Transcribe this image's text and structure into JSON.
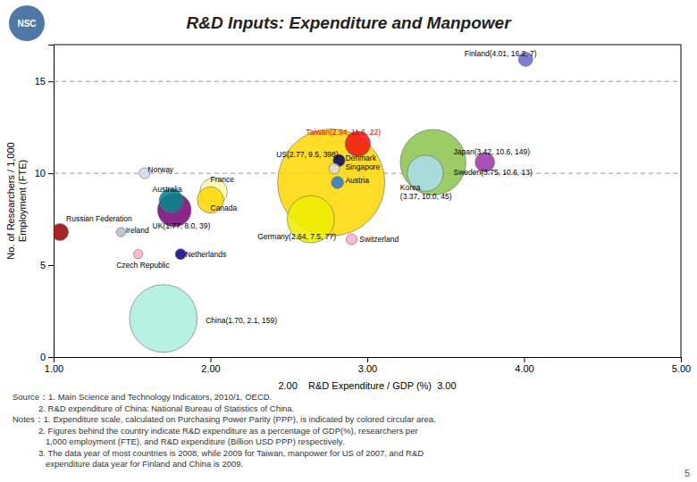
{
  "chart_data": {
    "type": "bubble",
    "title": "R&D Inputs: Expenditure and Manpower",
    "logo_text": "NSC",
    "page_number": "5",
    "xlabel": "2.00    R&D Expenditure / GDP (%)  3.00",
    "ylabel": "No. of Researchers / 1,000\nEmployment (FTE)",
    "xlim": [
      1.0,
      5.0
    ],
    "ylim": [
      0,
      17
    ],
    "xticks": [
      {
        "value": 1.0,
        "label": "1.00"
      },
      {
        "value": 2.0,
        "label": "2.00"
      },
      {
        "value": 3.0,
        "label": "3.00"
      },
      {
        "value": 4.0,
        "label": "4.00"
      },
      {
        "value": 5.0,
        "label": "5.00"
      }
    ],
    "yticks": [
      0,
      5,
      10,
      15
    ],
    "grid": false,
    "hlines": [
      15,
      10
    ],
    "x": [
      2.77,
      2.94,
      3.42,
      3.75,
      4.01,
      3.37,
      2.82,
      2.79,
      2.81,
      2.64,
      1.58,
      1.75,
      2.02,
      2.0,
      1.77,
      1.81,
      1.04,
      1.43,
      1.54,
      2.9,
      1.7
    ],
    "values": [
      9.5,
      11.6,
      10.6,
      10.6,
      16.2,
      10.0,
      10.7,
      10.25,
      9.5,
      7.5,
      10.0,
      8.5,
      9.0,
      8.55,
      8.0,
      5.6,
      6.8,
      6.8,
      5.6,
      6.4,
      2.1
    ],
    "sizes": [
      398,
      22,
      149,
      13,
      7,
      45,
      5,
      4,
      5,
      77,
      4,
      20,
      26,
      24,
      39,
      4,
      10,
      3,
      3,
      4,
      159
    ],
    "colors": [
      "#FFD700",
      "#EE1111",
      "#8BC34A",
      "#9933AA",
      "#6666CC",
      "#AADDEE",
      "#000066",
      "#DDDDDD",
      "#2277DD",
      "#EEEE00",
      "#CCDDEE",
      "#008888",
      "#FFFFAA",
      "#FFD700",
      "#770077",
      "#000088",
      "#990000",
      "#BBBBCC",
      "#FFAACC",
      "#FFAACC",
      "#AAEEDD"
    ],
    "annotations": [
      {
        "text": "US(2.77, 9.5, 398)",
        "x": 2.42,
        "y": 11.05,
        "color": "#000000"
      },
      {
        "text": "Taiwan(2.94, 11.6, 22)",
        "x": 2.61,
        "y": 12.25,
        "color": "#DD0000"
      },
      {
        "text": "Japan(3.42, 10.6, 149)",
        "x": 3.55,
        "y": 11.15,
        "color": "#000000"
      },
      {
        "text": "Sweden(3.75, 10.6, 13)",
        "x": 3.55,
        "y": 10.05,
        "color": "#000000"
      },
      {
        "text": "Finland(4.01, 16.2, 7)",
        "x": 3.62,
        "y": 16.5,
        "color": "#000000"
      },
      {
        "text": "Korea\n(3.37, 10.0, 45)",
        "x": 3.21,
        "y": 9.0,
        "color": "#000000"
      },
      {
        "text": "Denmark",
        "x": 2.86,
        "y": 10.85,
        "color": "#000000"
      },
      {
        "text": "Singapore",
        "x": 2.86,
        "y": 10.35,
        "color": "#000000"
      },
      {
        "text": "Austria",
        "x": 2.86,
        "y": 9.6,
        "color": "#000000"
      },
      {
        "text": "Germany(2.64, 7.5, 77)",
        "x": 2.3,
        "y": 6.55,
        "color": "#000000"
      },
      {
        "text": "Norway",
        "x": 1.6,
        "y": 10.2,
        "color": "#000000"
      },
      {
        "text": "Australia",
        "x": 1.63,
        "y": 9.15,
        "color": "#000000"
      },
      {
        "text": "France",
        "x": 2.0,
        "y": 9.65,
        "color": "#000000"
      },
      {
        "text": "Canada",
        "x": 2.0,
        "y": 8.1,
        "color": "#000000"
      },
      {
        "text": "UK(1.77, 8.0, 39)",
        "x": 1.63,
        "y": 7.15,
        "color": "#000000"
      },
      {
        "text": "Netherlands",
        "x": 1.84,
        "y": 5.6,
        "color": "#000000"
      },
      {
        "text": "Russian Federation",
        "x": 1.08,
        "y": 7.55,
        "color": "#000000"
      },
      {
        "text": "Ireland",
        "x": 1.46,
        "y": 6.9,
        "color": "#000000"
      },
      {
        "text": "Czech Republic",
        "x": 1.4,
        "y": 5.0,
        "color": "#000000"
      },
      {
        "text": "Switzerland",
        "x": 2.95,
        "y": 6.4,
        "color": "#000000"
      },
      {
        "text": "China(1.70, 2.1, 159)",
        "x": 1.97,
        "y": 2.0,
        "color": "#000000"
      }
    ],
    "notes": [
      "Source：1. Main Science and Technology Indicators, 2010/1, OECD.",
      "           2. R&D expenditure of China: National Bureau of Statistics of China.",
      "Notes：1. Expenditure scale, calculated on Purchasing Power Parity (PPP), is indicated by colored circular area.",
      "           2. Figures behind the country indicate R&D expenditure as a percentage of GDP(%), researchers per",
      "              1,000 employment (FTE), and R&D expenditure (Billion USD PPP) respectively.",
      "           3. The data year of most countries is 2008, while 2009 for Taiwan, manpower for US of 2007, and R&D",
      "              expenditure data year for Finland and China is 2009."
    ]
  }
}
